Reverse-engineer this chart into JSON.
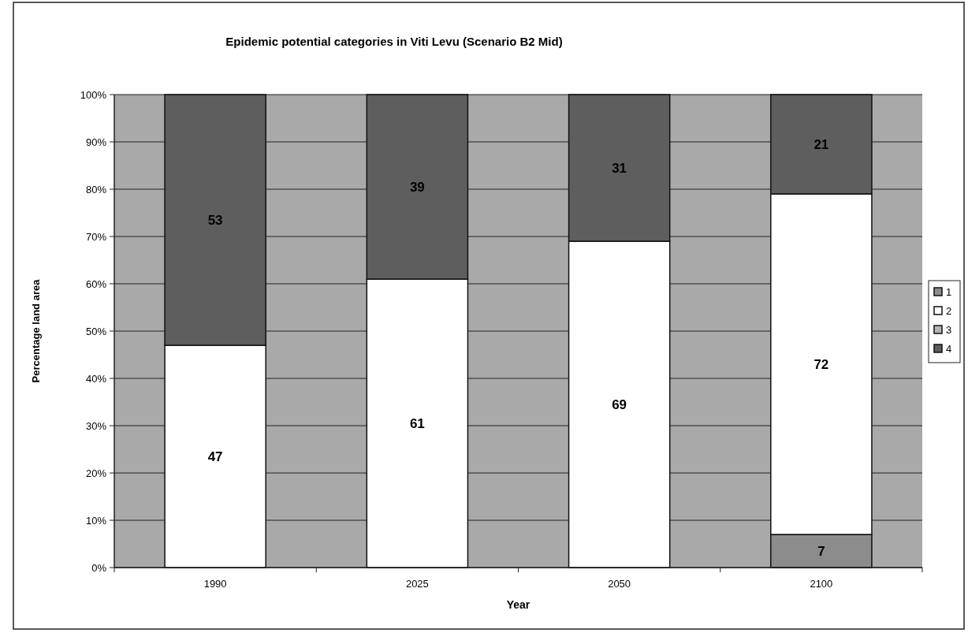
{
  "chart_data": {
    "type": "bar",
    "stacked": true,
    "title": "Epidemic potential categories in Viti Levu (Scenario B2 Mid)",
    "xlabel": "Year",
    "ylabel": "Percentage land area",
    "categories": [
      "1990",
      "2025",
      "2050",
      "2100"
    ],
    "series": [
      {
        "name": "1",
        "color": "#8c8c8c",
        "values": [
          0,
          0,
          0,
          7
        ],
        "value_labels": [
          null,
          null,
          null,
          "7"
        ]
      },
      {
        "name": "2",
        "color": "#ffffff",
        "values": [
          47,
          61,
          69,
          72
        ],
        "value_labels": [
          "47",
          "61",
          "69",
          "72"
        ]
      },
      {
        "name": "3",
        "color": "#b4b4b4",
        "values": [
          0,
          0,
          0,
          0
        ],
        "value_labels": [
          null,
          null,
          null,
          null
        ]
      },
      {
        "name": "4",
        "color": "#5e5e5e",
        "values": [
          53,
          39,
          31,
          21
        ],
        "value_labels": [
          "53",
          "39",
          "31",
          "21"
        ]
      }
    ],
    "ylim": [
      0,
      100
    ],
    "yticks": [
      {
        "value": 0,
        "label": "0%"
      },
      {
        "value": 10,
        "label": "10%"
      },
      {
        "value": 20,
        "label": "20%"
      },
      {
        "value": 30,
        "label": "30%"
      },
      {
        "value": 40,
        "label": "40%"
      },
      {
        "value": 50,
        "label": "50%"
      },
      {
        "value": 60,
        "label": "60%"
      },
      {
        "value": 70,
        "label": "70%"
      },
      {
        "value": 80,
        "label": "80%"
      },
      {
        "value": 90,
        "label": "90%"
      },
      {
        "value": 100,
        "label": "100%"
      }
    ],
    "grid": "y",
    "legend": "right"
  }
}
